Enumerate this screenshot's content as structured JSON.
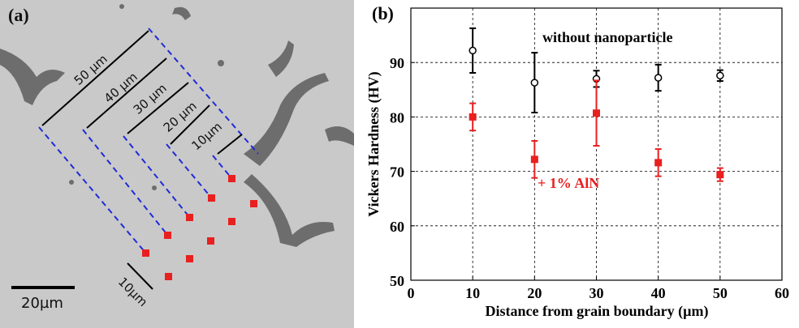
{
  "panel_a": {
    "label": "(a)",
    "dimensions": [
      "50 µm",
      "40 µm",
      "30 µm",
      "20 µm",
      "10µm"
    ],
    "spacing": "10µm",
    "scale_bar": "20µm"
  },
  "chart_data": {
    "type": "scatter",
    "panel_label": "(b)",
    "x_label": "Distance from grain boundary (µm)",
    "y_label": "Vickers Hardness (HV)",
    "x": [
      10,
      20,
      30,
      40,
      50
    ],
    "xlim": [
      0,
      60
    ],
    "xticks": [
      0,
      10,
      20,
      30,
      40,
      50,
      60
    ],
    "ylim": [
      50,
      100
    ],
    "yticks": [
      50,
      60,
      70,
      80,
      90
    ],
    "grid": true,
    "series": [
      {
        "name": "without nanoparticle",
        "color": "#000000",
        "marker": "open-circle",
        "values": [
          92.2,
          86.3,
          87.0,
          87.2,
          87.6
        ],
        "errors": [
          4.1,
          5.5,
          1.5,
          2.4,
          1.0
        ]
      },
      {
        "name": "+ 1% AlN",
        "color": "#e8201f",
        "marker": "square",
        "values": [
          80.0,
          72.2,
          80.7,
          71.6,
          69.4
        ],
        "errors": [
          2.5,
          3.4,
          6.0,
          2.5,
          1.2
        ]
      }
    ]
  }
}
